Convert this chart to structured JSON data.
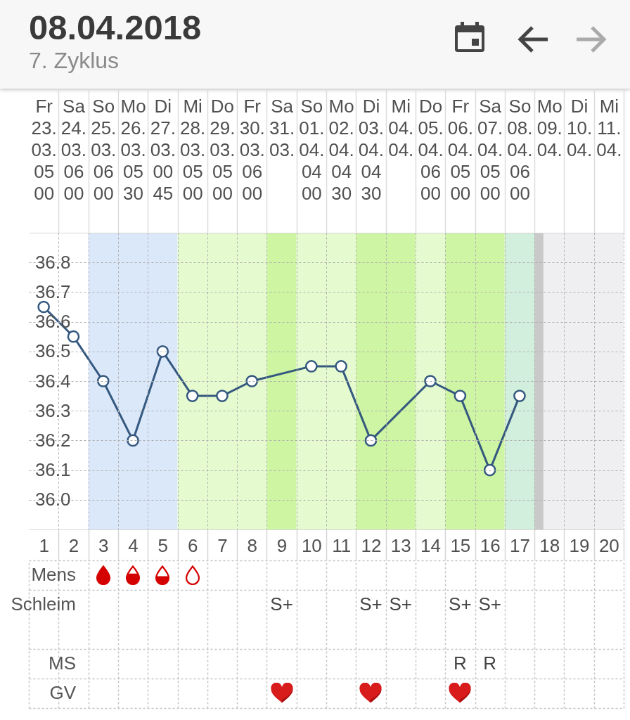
{
  "chart_data": [
    {
      "type": "line",
      "title": "08.04.2018",
      "subtitle": "7. Zyklus",
      "xlim": [
        0.5,
        20.5
      ],
      "xticks": [
        1,
        2,
        3,
        4,
        5,
        6,
        7,
        8,
        9,
        10,
        11,
        12,
        13,
        14,
        15,
        16,
        17,
        18,
        19,
        20
      ],
      "x2lim": [
        "2018-03-22T12:00",
        "2018-04-11T12:00"
      ],
      "x2ticks": [
        {
          "value": "2018-03-23",
          "label": "Fr\n23.\n03.\n05\n00"
        },
        {
          "value": "2018-03-24",
          "label": "Sa\n24.\n03.\n06\n00"
        },
        {
          "value": "2018-03-25",
          "label": "So\n25.\n03.\n06\n00"
        },
        {
          "value": "2018-03-26",
          "label": "Mo\n26.\n03.\n05\n30"
        },
        {
          "value": "2018-03-27",
          "label": "Di\n27.\n03.\n00\n45"
        },
        {
          "value": "2018-03-28",
          "label": "Mi\n28.\n03.\n05\n00"
        },
        {
          "value": "2018-03-29",
          "label": "Do\n29.\n03.\n05\n00"
        },
        {
          "value": "2018-03-30",
          "label": "Fr\n30.\n03.\n06\n00"
        },
        {
          "value": "2018-03-31",
          "label": "Sa\n31.\n03."
        },
        {
          "value": "2018-04-01",
          "label": "So\n01.\n04.\n04\n00"
        },
        {
          "value": "2018-04-02",
          "label": "Mo\n02.\n04.\n04\n30"
        },
        {
          "value": "2018-04-03",
          "label": "Di\n03.\n04.\n04\n30"
        },
        {
          "value": "2018-04-04",
          "label": "Mi\n04.\n04."
        },
        {
          "value": "2018-04-05",
          "label": "Do\n05.\n04.\n06\n00"
        },
        {
          "value": "2018-04-06",
          "label": "Fr\n06.\n04.\n05\n00"
        },
        {
          "value": "2018-04-07",
          "label": "Sa\n07.\n04.\n05\n00"
        },
        {
          "value": "2018-04-08",
          "label": "So\n08.\n04.\n06\n00"
        },
        {
          "value": "2018-04-09",
          "label": "Mo\n09.\n04."
        },
        {
          "value": "2018-04-10",
          "label": "Di\n10.\n04."
        },
        {
          "value": "2018-04-11",
          "label": "Mi\n11.\n04."
        }
      ],
      "ylim": [
        35.9,
        36.9
      ],
      "yticks": [
        {
          "value": 36,
          "label": "36.0"
        },
        36.1,
        36.2,
        36.3,
        36.4,
        36.5,
        36.6,
        36.7,
        36.8
      ],
      "series": [
        {
          "color": "#34587f",
          "x": [
            1,
            2,
            3,
            4,
            5,
            6,
            7,
            8,
            10,
            11,
            12,
            14,
            15,
            16,
            17
          ],
          "values": [
            36.65,
            36.55,
            36.4,
            36.2,
            36.5,
            36.35,
            36.35,
            36.4,
            36.45,
            36.45,
            36.2,
            36.4,
            36.35,
            36.1,
            36.35
          ]
        }
      ],
      "marker": "circle",
      "line_style": "solid",
      "grid": true,
      "bands": [
        {
          "axis": "x",
          "from": 2.5,
          "to": 5.5,
          "color": "#dbe8fa"
        },
        {
          "axis": "x",
          "from": 5.5,
          "to": 8.5,
          "color": "#e5fbcf"
        },
        {
          "axis": "x",
          "from": 8.5,
          "to": 9.5,
          "color": "#cdf5a2"
        },
        {
          "axis": "x",
          "from": 9.5,
          "to": 11.5,
          "color": "#e5fbcf"
        },
        {
          "axis": "x",
          "from": 11.5,
          "to": 13.5,
          "color": "#cef5a3"
        },
        {
          "axis": "x",
          "from": 13.5,
          "to": 14.5,
          "color": "#e5fbcf"
        },
        {
          "axis": "x",
          "from": 14.5,
          "to": 16.5,
          "color": "#cef5a3"
        },
        {
          "axis": "x",
          "from": 16.5,
          "to": 17.5,
          "color": "#d2eedc"
        },
        {
          "axis": "x",
          "from": 17.5,
          "to": 20.5,
          "color": "#efeff2"
        },
        {
          "axis": "x",
          "from": 17.5,
          "to": 17.8,
          "color": "#c9c9c9"
        }
      ]
    },
    {
      "type": "other",
      "categories": [
        null,
        null,
        null,
        null,
        null,
        null,
        null,
        null,
        null,
        null,
        null,
        null,
        null,
        null,
        null,
        null,
        null,
        null,
        null,
        null
      ],
      "y_categories": [
        "Mens",
        "Schleim",
        "MS",
        "GV"
      ],
      "cell_labels": [
        [
          null,
          null,
          null,
          null,
          null,
          null,
          null,
          null,
          null,
          null,
          null,
          null,
          null,
          null,
          null,
          null,
          null,
          null,
          null,
          null
        ],
        [
          null,
          null,
          null,
          null,
          null,
          null,
          null,
          null,
          "S+",
          null,
          null,
          "S+",
          "S+",
          null,
          "S+",
          "S+",
          null,
          null,
          null,
          null
        ],
        [
          null,
          null,
          null,
          null,
          null,
          null,
          null,
          null,
          null,
          null,
          null,
          null,
          null,
          null,
          "R",
          "R",
          null,
          null,
          null,
          null
        ],
        [
          null,
          null,
          null,
          null,
          null,
          null,
          null,
          null,
          null,
          null,
          null,
          null,
          null,
          null,
          null,
          null,
          null,
          null,
          null,
          null
        ]
      ]
    }
  ]
}
